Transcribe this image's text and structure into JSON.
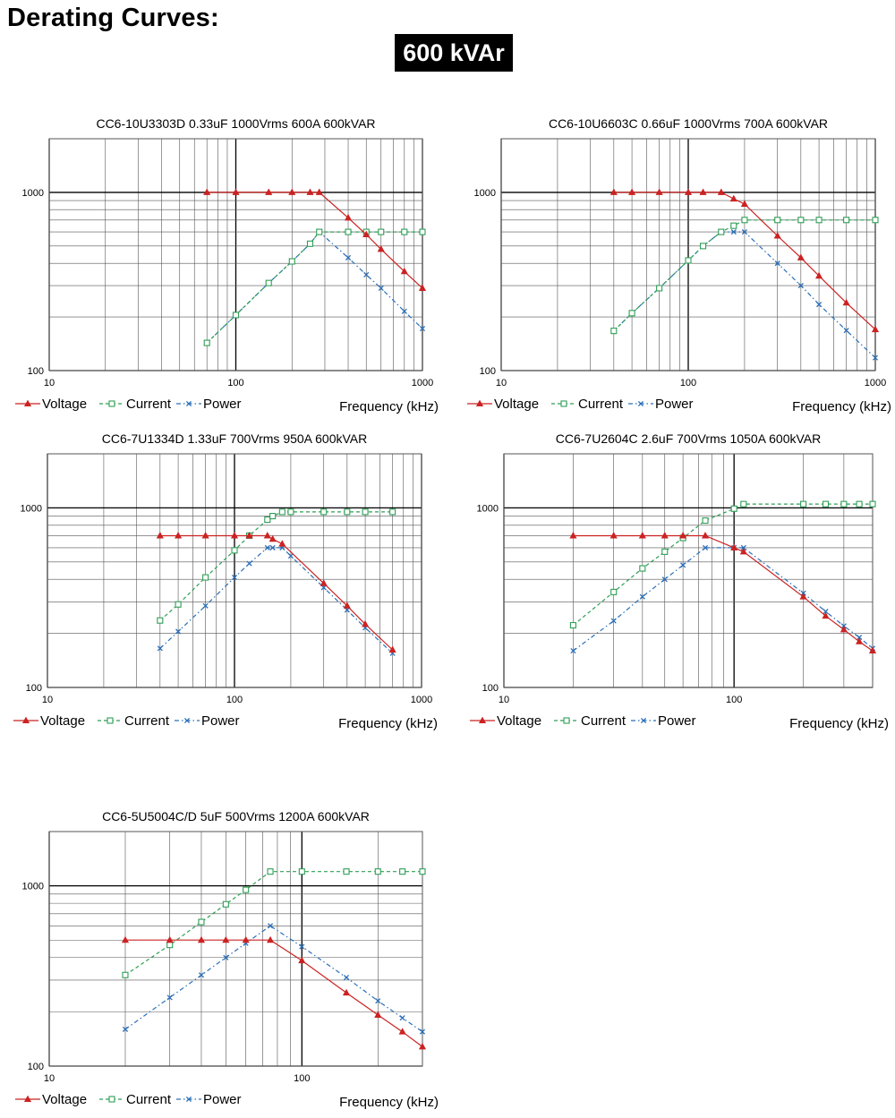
{
  "header": {
    "title": "Derating Curves:",
    "rating": "600 kVAr"
  },
  "legend_labels": {
    "voltage": "Voltage",
    "current": "Current",
    "power": "Power"
  },
  "colors": {
    "voltage": "#cc2222",
    "current": "#2e9e55",
    "power": "#2a6fb8"
  },
  "chart_data": [
    {
      "type": "line",
      "title": "CC6-10U3303D  0.33uF 1000Vrms 600A 600kVAR",
      "xlabel": "Frequency (kHz)",
      "ylabel": "",
      "x_scale": "log",
      "y_scale": "log",
      "xlim": [
        10,
        1000
      ],
      "ylim": [
        100,
        2000
      ],
      "x_ticks": [
        "10",
        "100",
        "1000"
      ],
      "y_ticks": [
        "100",
        "1000"
      ],
      "grid": true,
      "legend": "bottom-left",
      "series": [
        {
          "name": "Voltage",
          "x": [
            70,
            100,
            150,
            200,
            250,
            280,
            400,
            500,
            600,
            800,
            1000
          ],
          "y": [
            1000,
            1000,
            1000,
            1000,
            1000,
            1000,
            720,
            580,
            480,
            360,
            290
          ]
        },
        {
          "name": "Current",
          "x": [
            70,
            100,
            150,
            200,
            250,
            280,
            400,
            500,
            600,
            800,
            1000
          ],
          "y": [
            143,
            205,
            310,
            410,
            515,
            600,
            600,
            600,
            600,
            600,
            600
          ]
        },
        {
          "name": "Power",
          "x": [
            70,
            100,
            150,
            200,
            250,
            280,
            400,
            500,
            600,
            800,
            1000
          ],
          "y": [
            143,
            205,
            310,
            410,
            515,
            600,
            430,
            345,
            290,
            215,
            172
          ]
        }
      ]
    },
    {
      "type": "line",
      "title": "CC6-10U6603C  0.66uF 1000Vrms 700A 600kVAR",
      "xlabel": "Frequency (kHz)",
      "ylabel": "",
      "x_scale": "log",
      "y_scale": "log",
      "xlim": [
        10,
        1000
      ],
      "ylim": [
        100,
        2000
      ],
      "x_ticks": [
        "10",
        "100",
        "1000"
      ],
      "y_ticks": [
        "100",
        "1000"
      ],
      "grid": true,
      "legend": "bottom-left",
      "series": [
        {
          "name": "Voltage",
          "x": [
            40,
            50,
            70,
            100,
            120,
            150,
            175,
            200,
            300,
            400,
            500,
            700,
            1000
          ],
          "y": [
            1000,
            1000,
            1000,
            1000,
            1000,
            1000,
            920,
            860,
            570,
            430,
            340,
            240,
            170
          ]
        },
        {
          "name": "Current",
          "x": [
            40,
            50,
            70,
            100,
            120,
            150,
            175,
            200,
            300,
            400,
            500,
            700,
            1000
          ],
          "y": [
            167,
            210,
            290,
            415,
            500,
            600,
            650,
            700,
            700,
            700,
            700,
            700,
            700
          ]
        },
        {
          "name": "Power",
          "x": [
            40,
            50,
            70,
            100,
            120,
            150,
            175,
            200,
            300,
            400,
            500,
            700,
            1000
          ],
          "y": [
            167,
            210,
            290,
            415,
            500,
            600,
            600,
            600,
            400,
            300,
            235,
            168,
            118
          ]
        }
      ]
    },
    {
      "type": "line",
      "title": "CC6-7U1334D  1.33uF 700Vrms 950A 600kVAR",
      "xlabel": "Frequency (kHz)",
      "ylabel": "",
      "x_scale": "log",
      "y_scale": "log",
      "xlim": [
        10,
        1000
      ],
      "ylim": [
        100,
        2000
      ],
      "x_ticks": [
        "10",
        "100",
        "1000"
      ],
      "y_ticks": [
        "100",
        "1000"
      ],
      "grid": true,
      "legend": "bottom-left",
      "series": [
        {
          "name": "Voltage",
          "x": [
            40,
            50,
            70,
            100,
            120,
            150,
            160,
            180,
            300,
            400,
            500,
            700
          ],
          "y": [
            700,
            700,
            700,
            700,
            700,
            700,
            670,
            630,
            380,
            285,
            225,
            162
          ]
        },
        {
          "name": "Current",
          "x": [
            40,
            50,
            70,
            100,
            120,
            150,
            160,
            180,
            200,
            300,
            400,
            500,
            700
          ],
          "y": [
            236,
            290,
            410,
            580,
            700,
            860,
            900,
            950,
            950,
            950,
            950,
            950,
            950
          ]
        },
        {
          "name": "Power",
          "x": [
            40,
            50,
            70,
            100,
            120,
            150,
            160,
            180,
            200,
            300,
            400,
            500,
            700
          ],
          "y": [
            165,
            205,
            285,
            410,
            490,
            600,
            600,
            600,
            540,
            360,
            270,
            215,
            155
          ]
        }
      ]
    },
    {
      "type": "line",
      "title": "CC6-7U2604C  2.6uF 700Vrms 1050A 600kVAR",
      "xlabel": "Frequency (kHz)",
      "ylabel": "",
      "x_scale": "log",
      "y_scale": "log",
      "xlim": [
        10,
        400
      ],
      "ylim": [
        100,
        2000
      ],
      "x_ticks": [
        "10",
        "100"
      ],
      "y_ticks": [
        "100",
        "1000"
      ],
      "grid": true,
      "legend": "bottom-left",
      "series": [
        {
          "name": "Voltage",
          "x": [
            20,
            30,
            40,
            50,
            60,
            75,
            100,
            110,
            200,
            250,
            300,
            350,
            400
          ],
          "y": [
            700,
            700,
            700,
            700,
            700,
            700,
            600,
            570,
            320,
            250,
            210,
            180,
            160
          ]
        },
        {
          "name": "Current",
          "x": [
            20,
            30,
            40,
            50,
            60,
            75,
            100,
            110,
            200,
            250,
            300,
            350,
            400
          ],
          "y": [
            222,
            340,
            460,
            570,
            680,
            850,
            990,
            1050,
            1050,
            1050,
            1050,
            1050,
            1050
          ]
        },
        {
          "name": "Power",
          "x": [
            20,
            30,
            40,
            50,
            60,
            75,
            100,
            110,
            200,
            250,
            300,
            350,
            400
          ],
          "y": [
            160,
            235,
            320,
            400,
            480,
            600,
            600,
            600,
            335,
            265,
            220,
            190,
            165
          ]
        }
      ]
    },
    {
      "type": "line",
      "title": "CC6-5U5004C/D  5uF 500Vrms 1200A 600kVAR",
      "xlabel": "Frequency (kHz)",
      "ylabel": "",
      "x_scale": "log",
      "y_scale": "log",
      "xlim": [
        10,
        300
      ],
      "ylim": [
        100,
        2000
      ],
      "x_ticks": [
        "10",
        "100"
      ],
      "y_ticks": [
        "100",
        "1000"
      ],
      "grid": true,
      "legend": "bottom-left",
      "series": [
        {
          "name": "Voltage",
          "x": [
            20,
            30,
            40,
            50,
            60,
            75,
            100,
            150,
            200,
            250,
            300
          ],
          "y": [
            500,
            500,
            500,
            500,
            500,
            500,
            385,
            255,
            192,
            155,
            128
          ]
        },
        {
          "name": "Current",
          "x": [
            20,
            30,
            40,
            50,
            60,
            75,
            100,
            150,
            200,
            250,
            300
          ],
          "y": [
            320,
            470,
            630,
            790,
            950,
            1200,
            1200,
            1200,
            1200,
            1200,
            1200
          ]
        },
        {
          "name": "Power",
          "x": [
            20,
            30,
            40,
            50,
            60,
            75,
            100,
            150,
            200,
            250,
            300
          ],
          "y": [
            160,
            240,
            320,
            400,
            480,
            600,
            460,
            310,
            230,
            185,
            155
          ]
        }
      ]
    }
  ]
}
